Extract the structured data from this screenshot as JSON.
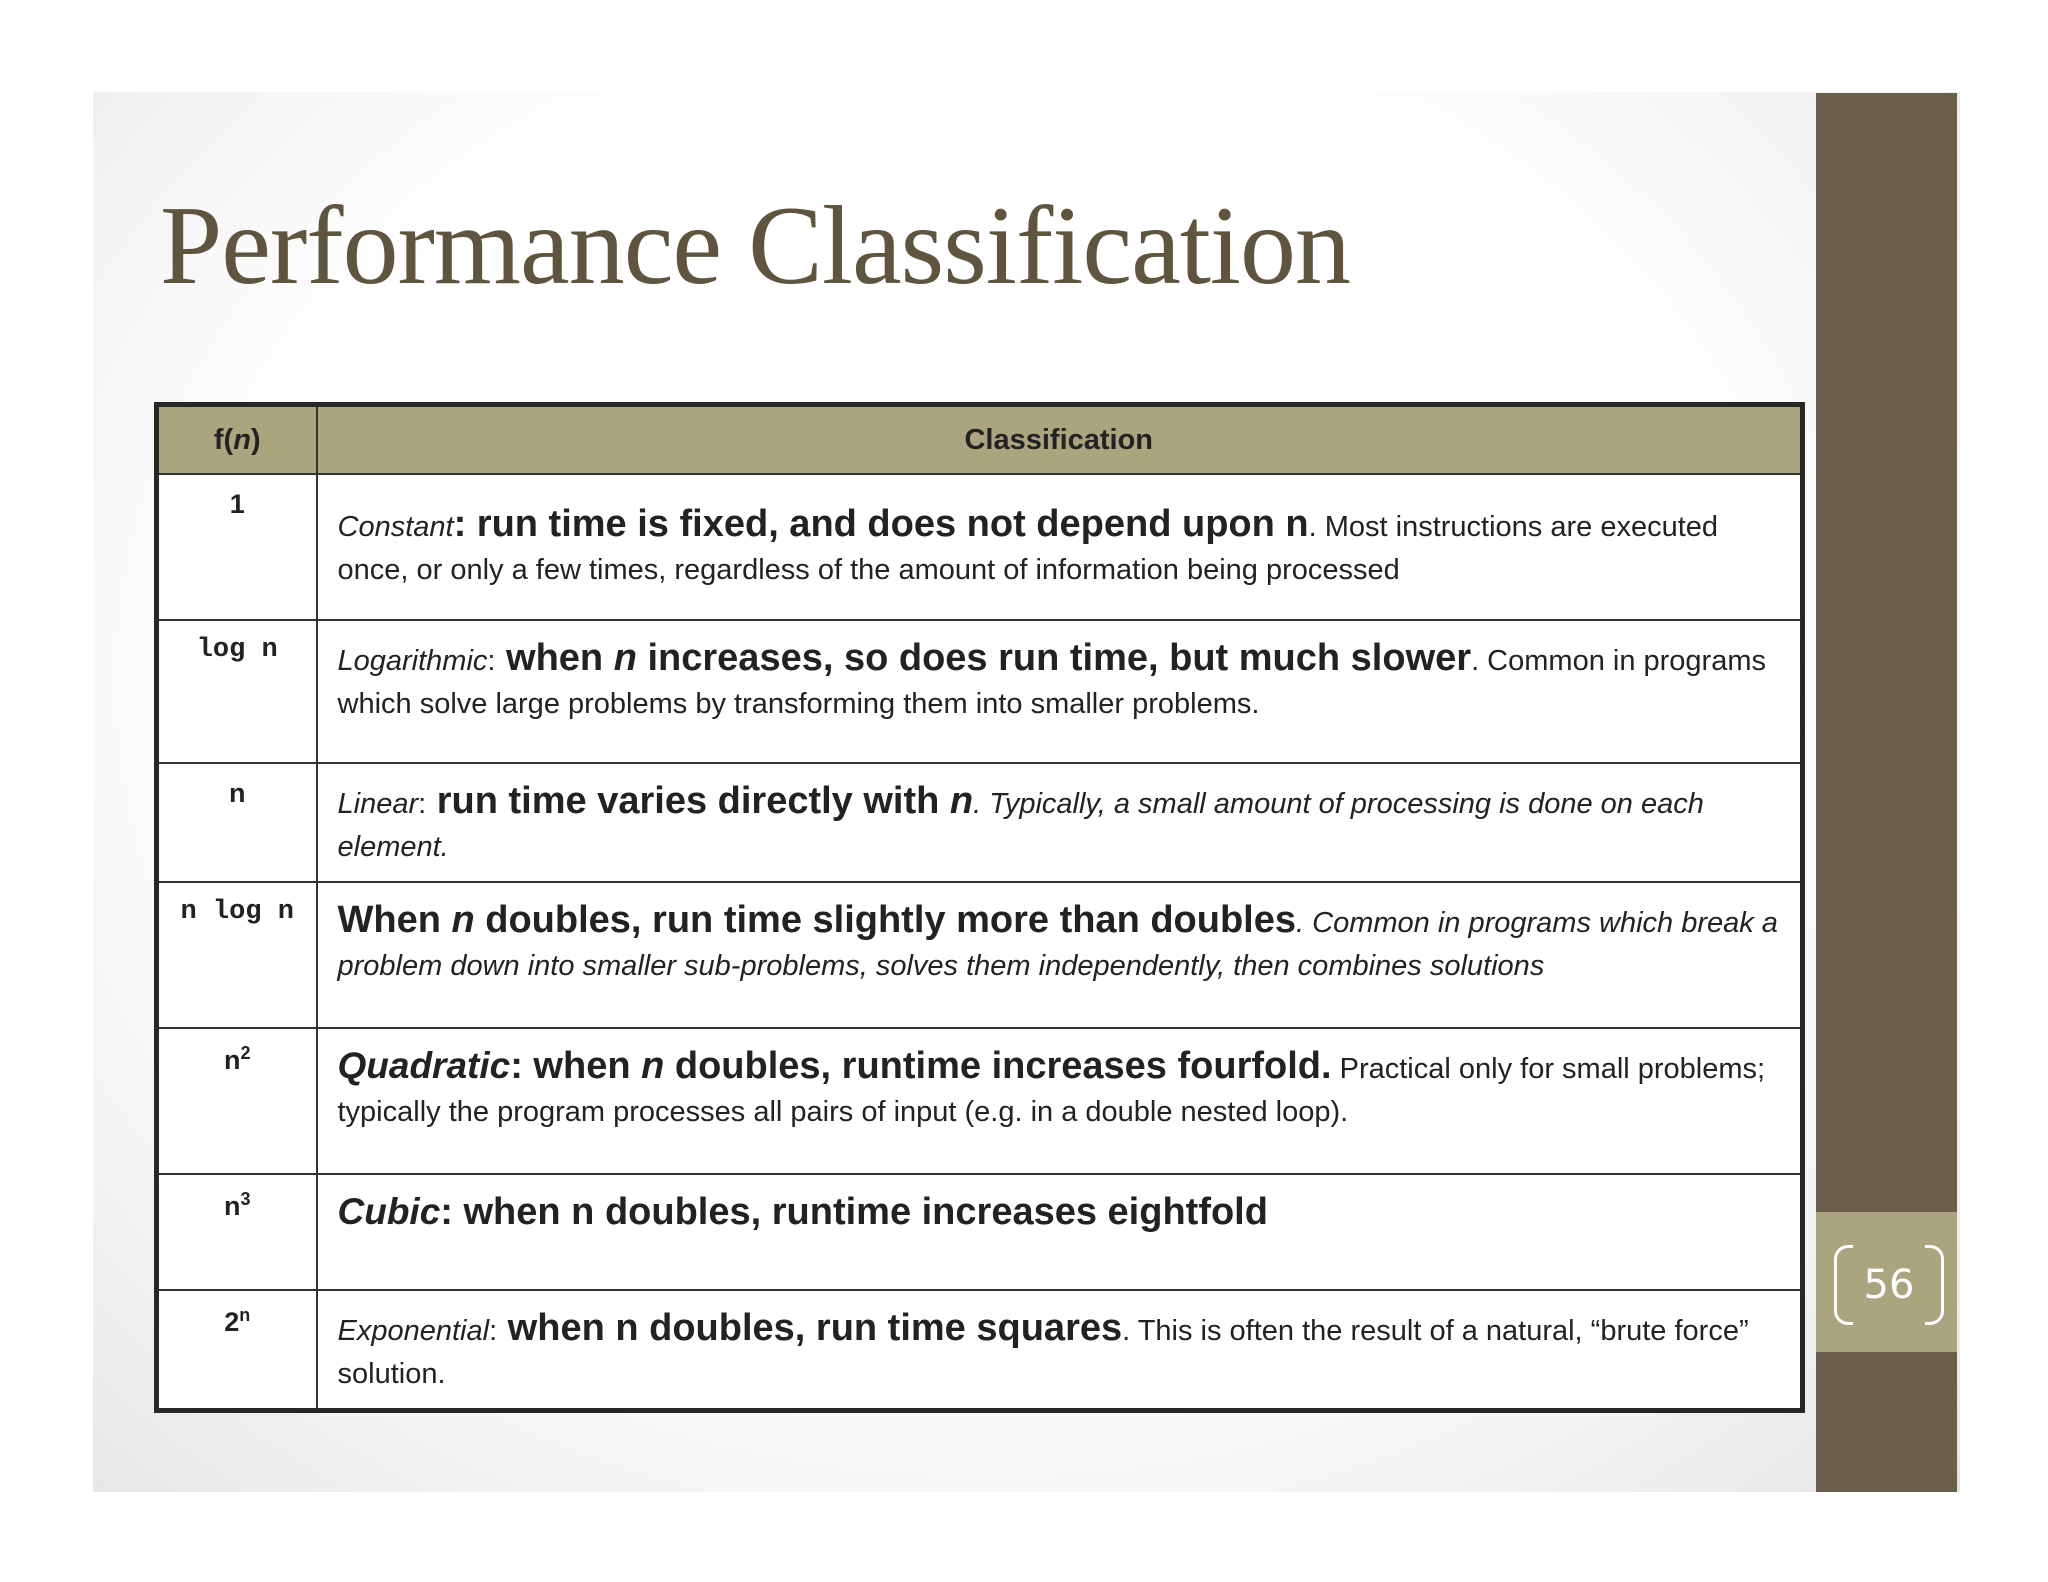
{
  "slide": {
    "title": "Performance Classification",
    "page_number": "56"
  },
  "table": {
    "headers": {
      "fn_prefix": "f(",
      "fn_var": "n",
      "fn_suffix": ")",
      "classification": "Classification"
    },
    "rows": [
      {
        "fn": "1",
        "lead": "Constant",
        "sep": ":",
        "main_a": " run time is fixed, and does not depend upon n",
        "main_b": "",
        "main_c": "",
        "rest": ". Most instructions are executed once, or only a few times, regardless of the amount of information being processed"
      },
      {
        "fn": "log n",
        "lead": "Logarithmic",
        "sep": ":",
        "main_a": " when ",
        "main_b": "n",
        "main_c": " increases, so does run time, but much slower",
        "rest": ". Common in programs which solve large problems by transforming them into smaller problems."
      },
      {
        "fn": "n",
        "lead": "Linear",
        "sep": ":",
        "main_a": " run time varies directly with ",
        "main_b": "n",
        "main_c": "",
        "rest": ". Typically, a small amount of processing is done on each element."
      },
      {
        "fn": "n log n",
        "lead": "",
        "sep": "",
        "main_a": "When ",
        "main_b": "n",
        "main_c": " doubles, run time slightly more than doubles",
        "rest": ". Common in programs which break a problem down into smaller sub-problems, solves them independently, then combines solutions"
      },
      {
        "fn": "n",
        "fn_sup": "2",
        "lead": "Quadratic",
        "sep": ":",
        "main_a": " when ",
        "main_b": "n",
        "main_c": " doubles, runtime increases fourfold.",
        "rest": " Practical only for small problems; typically the program processes all pairs of input (e.g. in a double nested loop)."
      },
      {
        "fn": "n",
        "fn_sup": "3",
        "lead": "Cubic",
        "sep": ":",
        "main_a": " when n doubles, runtime increases eightfold",
        "main_b": "",
        "main_c": "",
        "rest": ""
      },
      {
        "fn": "2",
        "fn_sup": "n",
        "lead": "Exponential",
        "sep": ":",
        "main_a": " when n doubles, run time squares",
        "main_b": "",
        "main_c": "",
        "rest": ". This is often the result of a natural, “brute force” solution."
      }
    ]
  },
  "colors": {
    "title": "#5f553f",
    "side_bar": "#6a5f4a",
    "header_fill": "#aaa57e",
    "number_box": "#aba57f"
  }
}
